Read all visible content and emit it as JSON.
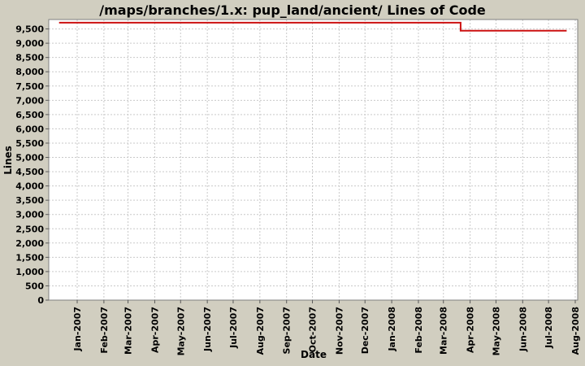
{
  "chart_data": {
    "type": "line",
    "title": "/maps/branches/1.x: pup_land/ancient/ Lines of Code",
    "xlabel": "Date",
    "ylabel": "Lines",
    "x_tick_labels": [
      "Jan-2007",
      "Feb-2007",
      "Mar-2007",
      "Apr-2007",
      "May-2007",
      "Jun-2007",
      "Jul-2007",
      "Aug-2007",
      "Sep-2007",
      "Oct-2007",
      "Nov-2007",
      "Dec-2007",
      "Jan-2008",
      "Feb-2008",
      "Mar-2008",
      "Apr-2008",
      "May-2008",
      "Jun-2008",
      "Jul-2008",
      "Aug-2008"
    ],
    "x_tick_start_year": 2007,
    "x_tick_start_month": 1,
    "y_tick_labels": [
      "0",
      "500",
      "1,000",
      "1,500",
      "2,000",
      "2,500",
      "3,000",
      "3,500",
      "4,000",
      "4,500",
      "5,000",
      "5,500",
      "6,000",
      "6,500",
      "7,000",
      "7,500",
      "8,000",
      "8,500",
      "9,000",
      "9,500"
    ],
    "y_tick_step": 500,
    "ylim": [
      0,
      9830
    ],
    "grid": true,
    "legend": "none",
    "series": [
      {
        "name": "Lines of Code",
        "color": "#cc1111",
        "points": [
          {
            "date": "2006-12-11",
            "value": 9720
          },
          {
            "date": "2008-03-21",
            "value": 9720
          },
          {
            "date": "2008-03-21",
            "value": 9440
          },
          {
            "date": "2008-07-22",
            "value": 9440
          }
        ]
      }
    ],
    "colors": {
      "background": "#d1cec0",
      "plot_background": "#ffffff",
      "gridline": "#c9c9c9",
      "plot_border": "#808080",
      "tick_mark": "#5a5a5a",
      "text": "#000000",
      "series_line": "#cc1111"
    }
  }
}
